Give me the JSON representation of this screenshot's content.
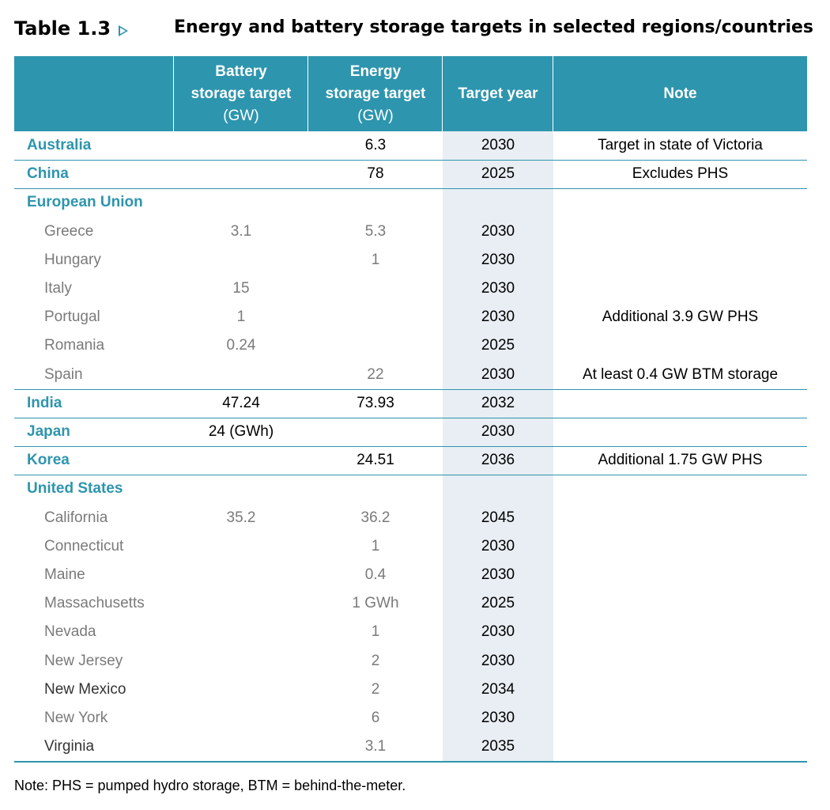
{
  "table_label": "Table 1.3",
  "table_title": "Energy and battery storage targets in selected regions/countries",
  "headers": {
    "battery": [
      "Battery",
      "storage target",
      "(GW)"
    ],
    "energy": [
      "Energy",
      "storage target",
      "(GW)"
    ],
    "year": "Target year",
    "note": "Note"
  },
  "rows": [
    {
      "name": "Australia",
      "type": "region",
      "battery": "",
      "energy": "6.3",
      "year": "2030",
      "note": "Target in state of Victoria"
    },
    {
      "name": "China",
      "type": "region",
      "battery": "",
      "energy": "78",
      "year": "2025",
      "note": "Excludes PHS"
    },
    {
      "name": "European Union",
      "type": "region",
      "battery": "",
      "energy": "",
      "year": "",
      "note": ""
    },
    {
      "name": "Greece",
      "type": "sub",
      "battery": "3.1",
      "energy": "5.3",
      "year": "2030",
      "note": ""
    },
    {
      "name": "Hungary",
      "type": "sub",
      "battery": "",
      "energy": "1",
      "year": "2030",
      "note": ""
    },
    {
      "name": "Italy",
      "type": "sub",
      "battery": "15",
      "energy": "",
      "year": "2030",
      "note": ""
    },
    {
      "name": "Portugal",
      "type": "sub",
      "battery": "1",
      "energy": "",
      "year": "2030",
      "note": "Additional 3.9 GW PHS"
    },
    {
      "name": "Romania",
      "type": "sub",
      "battery": "0.24",
      "energy": "",
      "year": "2025",
      "note": ""
    },
    {
      "name": "Spain",
      "type": "sub",
      "battery": "",
      "energy": "22",
      "year": "2030",
      "note": "At least 0.4 GW BTM storage"
    },
    {
      "name": "India",
      "type": "region",
      "battery": "47.24",
      "energy": "73.93",
      "year": "2032",
      "note": ""
    },
    {
      "name": "Japan",
      "type": "region",
      "battery": "24 (GWh)",
      "energy": "",
      "year": "2030",
      "note": ""
    },
    {
      "name": "Korea",
      "type": "region",
      "battery": "",
      "energy": "24.51",
      "year": "2036",
      "note": "Additional 1.75 GW PHS"
    },
    {
      "name": "United States",
      "type": "region",
      "battery": "",
      "energy": "",
      "year": "",
      "note": ""
    },
    {
      "name": "California",
      "type": "sub",
      "battery": "35.2",
      "energy": "36.2",
      "year": "2045",
      "note": ""
    },
    {
      "name": "Connecticut",
      "type": "sub",
      "battery": "",
      "energy": "1",
      "year": "2030",
      "note": ""
    },
    {
      "name": "Maine",
      "type": "sub",
      "battery": "",
      "energy": "0.4",
      "year": "2030",
      "note": ""
    },
    {
      "name": "Massachusetts",
      "type": "sub",
      "battery": "",
      "energy": "1 GWh",
      "year": "2025",
      "note": ""
    },
    {
      "name": "Nevada",
      "type": "sub",
      "battery": "",
      "energy": "1",
      "year": "2030",
      "note": ""
    },
    {
      "name": "New Jersey",
      "type": "sub",
      "battery": "",
      "energy": "2",
      "year": "2030",
      "note": ""
    },
    {
      "name": "New Mexico",
      "type": "sub-dark",
      "battery": "",
      "energy": "2",
      "year": "2034",
      "note": ""
    },
    {
      "name": "New York",
      "type": "sub",
      "battery": "",
      "energy": "6",
      "year": "2030",
      "note": ""
    },
    {
      "name": "Virginia",
      "type": "sub-dark",
      "battery": "",
      "energy": "3.1",
      "year": "2035",
      "note": ""
    }
  ],
  "footnote": "Note: PHS = pumped hydro storage, BTM = behind-the-meter.",
  "colors": {
    "accent": "#2e95ae",
    "target_year_bg": "#e8eef3",
    "sub_text": "#7a7a7a"
  }
}
